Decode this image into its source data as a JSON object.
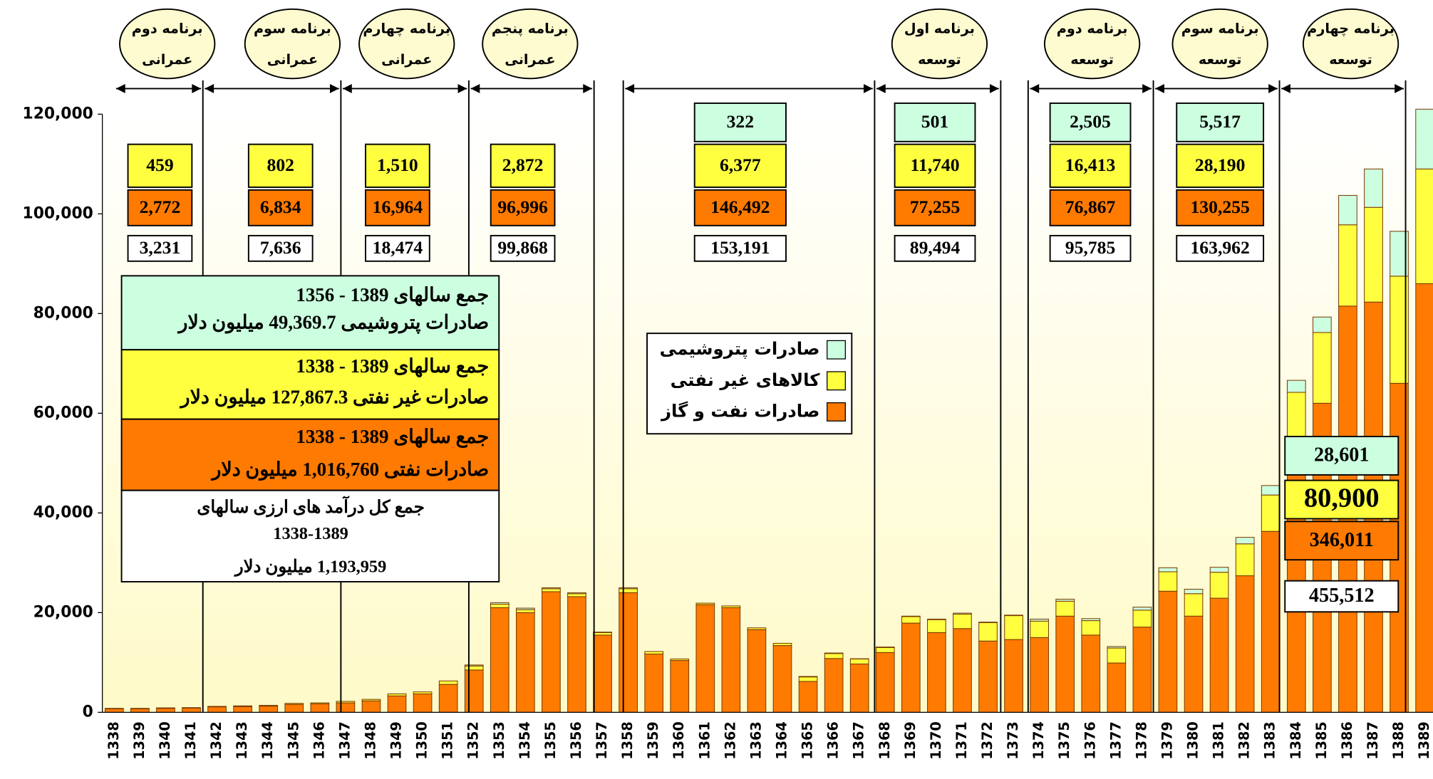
{
  "chart_data": {
    "type": "bar",
    "stacked": true,
    "categories": [
      "1338",
      "1339",
      "1340",
      "1341",
      "1342",
      "1343",
      "1344",
      "1345",
      "1346",
      "1347",
      "1348",
      "1349",
      "1350",
      "1351",
      "1352",
      "1353",
      "1354",
      "1355",
      "1356",
      "1357",
      "1358",
      "1359",
      "1360",
      "1361",
      "1362",
      "1363",
      "1364",
      "1365",
      "1366",
      "1367",
      "1368",
      "1369",
      "1370",
      "1371",
      "1372",
      "1373",
      "1374",
      "1375",
      "1376",
      "1377",
      "1378",
      "1379",
      "1380",
      "1381",
      "1382",
      "1383",
      "1384",
      "1385",
      "1386",
      "1387",
      "1388",
      "1389"
    ],
    "series": [
      {
        "name": "صادرات نفت و گاز",
        "color": "#ff7a00",
        "values": [
          700,
          700,
          800,
          850,
          1100,
          1150,
          1250,
          1600,
          1700,
          1900,
          2300,
          3300,
          3700,
          5600,
          8500,
          21000,
          20000,
          24200,
          23200,
          15500,
          24000,
          11700,
          10400,
          21600,
          21000,
          16600,
          13400,
          6200,
          10800,
          9700,
          12000,
          17900,
          16000,
          16800,
          14300,
          14600,
          15000,
          19300,
          15500,
          9900,
          17100,
          24300,
          19300,
          22900,
          27400,
          36300,
          53800,
          62000,
          81500,
          82300,
          66000,
          86000
        ]
      },
      {
        "name": "کالاهای غیر نفتی",
        "color": "#ffff40",
        "values": [
          100,
          100,
          100,
          100,
          100,
          150,
          150,
          200,
          200,
          300,
          300,
          400,
          400,
          700,
          800,
          700,
          600,
          600,
          600,
          500,
          800,
          500,
          300,
          300,
          350,
          350,
          450,
          900,
          1000,
          1000,
          1000,
          1300,
          2600,
          2900,
          3700,
          4800,
          3300,
          3000,
          2900,
          3000,
          3400,
          3900,
          4500,
          5200,
          6400,
          7300,
          10400,
          14200,
          16300,
          19000,
          21500,
          23000
        ]
      },
      {
        "name": "صادرات پتروشیمی",
        "color": "#ccffe0",
        "values": [
          0,
          0,
          0,
          0,
          0,
          0,
          0,
          0,
          0,
          0,
          0,
          0,
          0,
          0,
          200,
          300,
          300,
          200,
          200,
          100,
          200,
          0,
          0,
          0,
          0,
          0,
          0,
          100,
          100,
          50,
          100,
          100,
          100,
          200,
          100,
          100,
          400,
          400,
          400,
          300,
          600,
          800,
          900,
          1000,
          1300,
          1900,
          2400,
          3100,
          5900,
          7700,
          9000,
          12000
        ]
      }
    ],
    "ylim": [
      0,
      120000
    ],
    "yticks": [
      {
        "value": 0,
        "label": "0"
      },
      {
        "value": 20000,
        "label": "20,000"
      },
      {
        "value": 40000,
        "label": "40,000"
      },
      {
        "value": 60000,
        "label": "60,000"
      },
      {
        "value": 80000,
        "label": "80,000"
      },
      {
        "value": 100000,
        "label": "100,000"
      },
      {
        "value": 120000,
        "label": "120,000"
      }
    ],
    "legend": "center",
    "plans": [
      [
        "برنامه دوم",
        "عمرانی"
      ],
      [
        "برنامه سوم",
        "عمرانی"
      ],
      [
        "برنامه چهارم",
        "عمرانی"
      ],
      [
        "برنامه پنجم",
        "عمرانی"
      ],
      [
        "برنامه اول",
        "توسعه"
      ],
      [
        "برنامه دوم",
        "توسعه"
      ],
      [
        "برنامه سوم",
        "توسعه"
      ],
      [
        "برنامه چهارم",
        "توسعه"
      ]
    ],
    "period_totals": [
      {
        "non_oil": "459",
        "oil": "2,772",
        "total": "3,231"
      },
      {
        "non_oil": "802",
        "oil": "6,834",
        "total": "7,636"
      },
      {
        "non_oil": "1,510",
        "oil": "16,964",
        "total": "18,474"
      },
      {
        "non_oil": "2,872",
        "oil": "96,996",
        "total": "99,868"
      },
      {
        "petro": "322",
        "non_oil": "6,377",
        "oil": "146,492",
        "total": "153,191"
      },
      {
        "petro": "501",
        "non_oil": "11,740",
        "oil": "77,255",
        "total": "89,494"
      },
      {
        "petro": "2,505",
        "non_oil": "16,413",
        "oil": "76,867",
        "total": "95,785"
      },
      {
        "petro": "5,517",
        "non_oil": "28,190",
        "oil": "130,255",
        "total": "163,962"
      },
      {
        "petro": "28,601",
        "non_oil": "80,900",
        "oil": "346,011",
        "total": "455,512"
      }
    ],
    "summary": {
      "petro": [
        "جمع سالهای  1389 - 1356",
        "صادرات پتروشیمی 49,369.7 میلیون دلار"
      ],
      "non_oil": [
        "جمع سالهای  1389 - 1338",
        "صادرات غیر نفتی 127,867.3 میلیون دلار"
      ],
      "oil": [
        "جمع سالهای  1389 - 1338",
        "صادرات نفتی 1,016,760 میلیون دلار"
      ],
      "total": [
        "جمع کل درآمد های ارزی سالهای",
        "1338-1389",
        "1,193,959 میلیون دلار"
      ]
    }
  }
}
